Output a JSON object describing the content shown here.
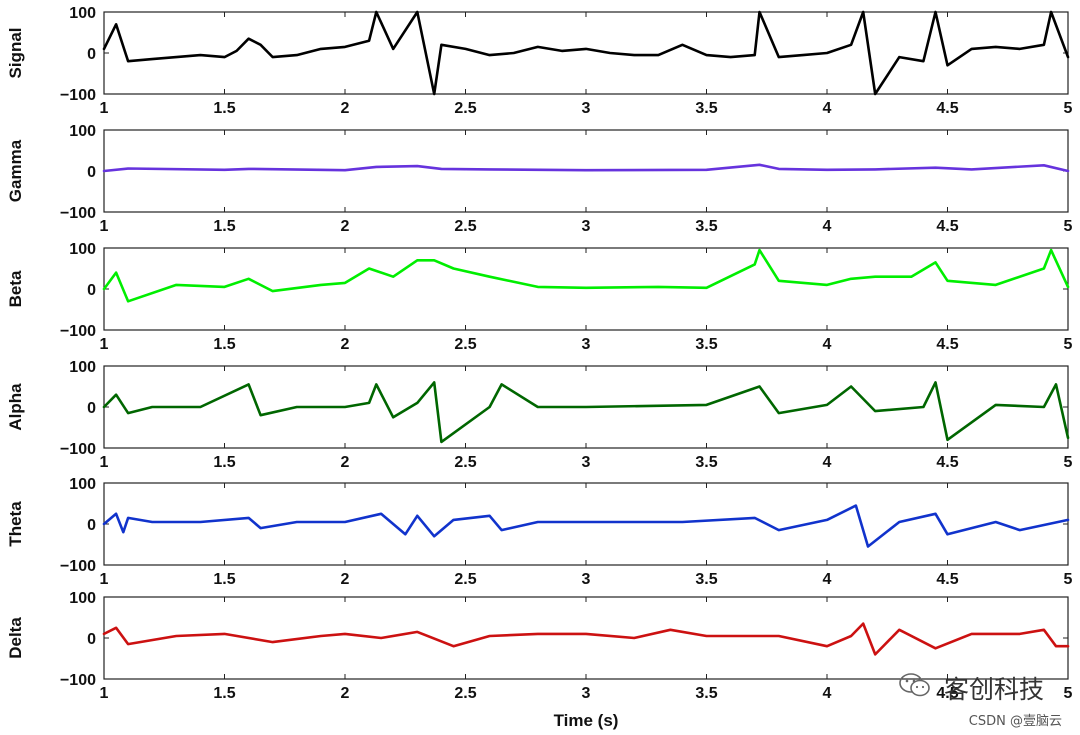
{
  "chart_data": {
    "type": "line",
    "xlabel": "Time (s)",
    "xlim": [
      1,
      5
    ],
    "x_ticks": [
      "1",
      "1.5",
      "2",
      "2.5",
      "3",
      "3.5",
      "4",
      "4.5",
      "5"
    ],
    "y_ticks": [
      "100",
      "0",
      "−100"
    ],
    "ylim": [
      -100,
      100
    ],
    "grid": false,
    "panels": [
      {
        "ylabel": "Signal",
        "color": "#000000",
        "x": [
          1.0,
          1.05,
          1.1,
          1.2,
          1.3,
          1.4,
          1.5,
          1.55,
          1.6,
          1.65,
          1.7,
          1.8,
          1.9,
          2.0,
          2.1,
          2.13,
          2.2,
          2.3,
          2.37,
          2.4,
          2.5,
          2.6,
          2.7,
          2.8,
          2.9,
          3.0,
          3.1,
          3.2,
          3.3,
          3.4,
          3.5,
          3.6,
          3.7,
          3.72,
          3.8,
          3.9,
          4.0,
          4.1,
          4.15,
          4.2,
          4.3,
          4.4,
          4.45,
          4.5,
          4.6,
          4.7,
          4.8,
          4.9,
          4.93,
          5.0
        ],
        "y": [
          10,
          70,
          -20,
          -15,
          -10,
          -5,
          -10,
          5,
          35,
          20,
          -10,
          -5,
          10,
          15,
          30,
          100,
          10,
          100,
          -100,
          20,
          10,
          -5,
          0,
          15,
          5,
          10,
          0,
          -5,
          -5,
          20,
          -5,
          -10,
          -5,
          100,
          -10,
          -5,
          0,
          20,
          100,
          -100,
          -10,
          -20,
          100,
          -30,
          10,
          15,
          10,
          20,
          100,
          -10
        ]
      },
      {
        "ylabel": "Gamma",
        "color": "#6633dd",
        "x": [
          1.0,
          1.1,
          1.5,
          1.6,
          2.0,
          2.13,
          2.3,
          2.4,
          2.6,
          3.0,
          3.5,
          3.72,
          3.8,
          4.0,
          4.2,
          4.45,
          4.6,
          4.9,
          5.0
        ],
        "y": [
          0,
          6,
          3,
          5,
          2,
          10,
          12,
          5,
          4,
          2,
          3,
          15,
          5,
          3,
          4,
          8,
          4,
          14,
          0
        ]
      },
      {
        "ylabel": "Beta",
        "color": "#00ee00",
        "x": [
          1.0,
          1.05,
          1.1,
          1.3,
          1.5,
          1.6,
          1.7,
          1.9,
          2.0,
          2.1,
          2.2,
          2.3,
          2.37,
          2.45,
          2.6,
          2.8,
          3.0,
          3.3,
          3.5,
          3.7,
          3.72,
          3.8,
          4.0,
          4.1,
          4.2,
          4.35,
          4.45,
          4.5,
          4.7,
          4.9,
          4.93,
          5.0
        ],
        "y": [
          0,
          40,
          -30,
          10,
          5,
          25,
          -5,
          10,
          15,
          50,
          30,
          70,
          70,
          50,
          30,
          5,
          3,
          5,
          3,
          60,
          95,
          20,
          10,
          25,
          30,
          30,
          65,
          20,
          10,
          50,
          95,
          5
        ]
      },
      {
        "ylabel": "Alpha",
        "color": "#006600",
        "x": [
          1.0,
          1.05,
          1.1,
          1.2,
          1.4,
          1.6,
          1.65,
          1.8,
          2.0,
          2.1,
          2.13,
          2.2,
          2.3,
          2.37,
          2.4,
          2.6,
          2.65,
          2.8,
          3.0,
          3.5,
          3.72,
          3.8,
          4.0,
          4.1,
          4.2,
          4.4,
          4.45,
          4.5,
          4.7,
          4.9,
          4.95,
          5.0
        ],
        "y": [
          0,
          30,
          -15,
          0,
          0,
          55,
          -20,
          0,
          0,
          10,
          55,
          -25,
          10,
          60,
          -85,
          0,
          55,
          0,
          0,
          5,
          50,
          -15,
          5,
          50,
          -10,
          0,
          60,
          -80,
          5,
          0,
          55,
          -75
        ]
      },
      {
        "ylabel": "Theta",
        "color": "#1133cc",
        "x": [
          1.0,
          1.05,
          1.08,
          1.1,
          1.2,
          1.4,
          1.6,
          1.65,
          1.8,
          2.0,
          2.15,
          2.25,
          2.3,
          2.37,
          2.45,
          2.6,
          2.65,
          2.8,
          3.0,
          3.4,
          3.7,
          3.8,
          4.0,
          4.12,
          4.17,
          4.3,
          4.45,
          4.5,
          4.7,
          4.8,
          5.0
        ],
        "y": [
          0,
          25,
          -20,
          15,
          5,
          5,
          15,
          -10,
          5,
          5,
          25,
          -25,
          20,
          -30,
          10,
          20,
          -15,
          5,
          5,
          5,
          15,
          -15,
          10,
          45,
          -55,
          5,
          25,
          -25,
          5,
          -15,
          10
        ]
      },
      {
        "ylabel": "Delta",
        "color": "#cc1111",
        "x": [
          1.0,
          1.05,
          1.1,
          1.3,
          1.5,
          1.7,
          1.9,
          2.0,
          2.15,
          2.3,
          2.45,
          2.6,
          2.8,
          3.0,
          3.2,
          3.35,
          3.5,
          3.8,
          4.0,
          4.1,
          4.15,
          4.2,
          4.3,
          4.45,
          4.6,
          4.8,
          4.9,
          4.95,
          5.0
        ],
        "y": [
          10,
          25,
          -15,
          5,
          10,
          -10,
          5,
          10,
          0,
          15,
          -20,
          5,
          10,
          10,
          0,
          20,
          5,
          5,
          -20,
          5,
          35,
          -40,
          20,
          -25,
          10,
          10,
          20,
          -20,
          -20
        ]
      }
    ]
  },
  "watermark": {
    "main": "客创科技",
    "sub": "CSDN @壹脑云"
  }
}
